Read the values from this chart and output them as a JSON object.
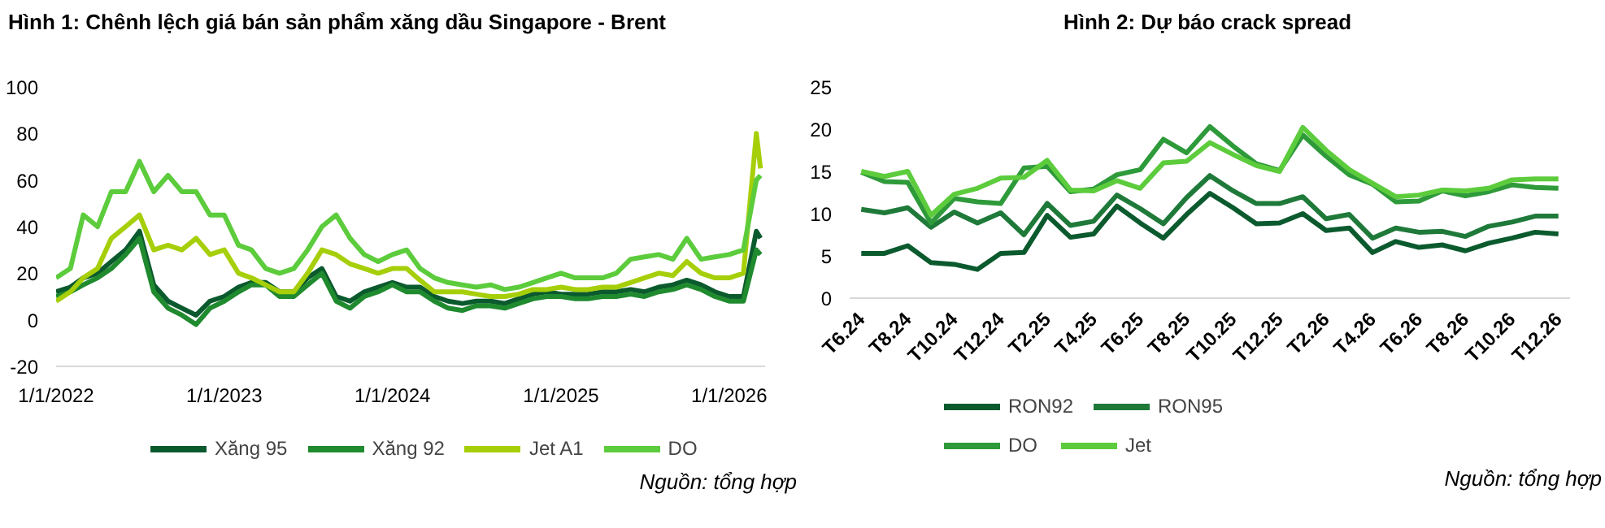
{
  "chart_data": [
    {
      "type": "line",
      "title": "Hình 1: Chênh lệch giá bán sản phẩm xăng dầu Singapore - Brent",
      "x": [
        "2022-01",
        "2022-02",
        "2022-03",
        "2022-04",
        "2022-05",
        "2022-06",
        "2022-07",
        "2022-08",
        "2022-09",
        "2022-10",
        "2022-11",
        "2022-12",
        "2023-01",
        "2023-02",
        "2023-03",
        "2023-04",
        "2023-05",
        "2023-06",
        "2023-07",
        "2023-08",
        "2023-09",
        "2023-10",
        "2023-11",
        "2023-12",
        "2024-01",
        "2024-02",
        "2024-03",
        "2024-04",
        "2024-05",
        "2024-06",
        "2024-07",
        "2024-08",
        "2024-09",
        "2024-10",
        "2024-11",
        "2024-12",
        "2025-01",
        "2025-02",
        "2025-03",
        "2025-04",
        "2025-05",
        "2025-06",
        "2025-07",
        "2025-08",
        "2025-09",
        "2025-10",
        "2025-11",
        "2025-12",
        "2026-01",
        "2026-02",
        "2026-03-01",
        "2026-03-10"
      ],
      "series": [
        {
          "name": "Xăng 95",
          "color": "#0b5a2e",
          "values": [
            12,
            14,
            18,
            20,
            25,
            30,
            38,
            15,
            8,
            5,
            2,
            8,
            10,
            14,
            16,
            16,
            12,
            12,
            18,
            22,
            10,
            8,
            12,
            14,
            16,
            14,
            14,
            10,
            8,
            7,
            8,
            8,
            7,
            9,
            11,
            12,
            11,
            11,
            11,
            12,
            12,
            13,
            12,
            14,
            15,
            17,
            15,
            12,
            10,
            10,
            38,
            35
          ]
        },
        {
          "name": "Xăng 92",
          "color": "#1f8a2e",
          "values": [
            10,
            12,
            15,
            18,
            22,
            28,
            35,
            12,
            5,
            2,
            -2,
            5,
            8,
            12,
            15,
            15,
            10,
            10,
            15,
            20,
            8,
            5,
            10,
            12,
            15,
            12,
            12,
            8,
            5,
            4,
            6,
            6,
            5,
            7,
            9,
            10,
            10,
            9,
            9,
            10,
            10,
            11,
            10,
            12,
            13,
            15,
            13,
            10,
            8,
            8,
            30,
            28
          ]
        },
        {
          "name": "Jet A1",
          "color": "#a6cf0a",
          "values": [
            8,
            12,
            18,
            22,
            35,
            40,
            45,
            30,
            32,
            30,
            35,
            28,
            30,
            20,
            18,
            15,
            12,
            12,
            20,
            30,
            28,
            24,
            22,
            20,
            22,
            22,
            17,
            12,
            12,
            12,
            11,
            10,
            10,
            11,
            13,
            13,
            14,
            13,
            13,
            14,
            14,
            16,
            18,
            20,
            19,
            25,
            20,
            18,
            18,
            20,
            80,
            65
          ]
        },
        {
          "name": "DO",
          "color": "#5ccc3c",
          "values": [
            18,
            22,
            45,
            40,
            55,
            55,
            68,
            55,
            62,
            55,
            55,
            45,
            45,
            32,
            30,
            22,
            20,
            22,
            30,
            40,
            45,
            35,
            28,
            25,
            28,
            30,
            22,
            18,
            16,
            15,
            14,
            15,
            13,
            14,
            16,
            18,
            20,
            18,
            18,
            18,
            20,
            26,
            27,
            28,
            26,
            35,
            26,
            27,
            28,
            30,
            60,
            62
          ]
        }
      ],
      "xlim": [
        "2022-01-01",
        "2026-03-20"
      ],
      "xticks": [
        {
          "value": "2022-01-01",
          "label": "1/1/2022"
        },
        {
          "value": "2023-01-01",
          "label": "1/1/2023"
        },
        {
          "value": "2024-01-01",
          "label": "1/1/2024"
        },
        {
          "value": "2025-01-01",
          "label": "1/1/2025"
        },
        {
          "value": "2026-01-01",
          "label": "1/1/2026"
        }
      ],
      "ylim": [
        -20,
        100
      ],
      "yticks": [
        -20,
        0,
        20,
        40,
        60,
        80,
        100
      ],
      "legend": "bottom",
      "grid": false,
      "annotations": [
        "Nguồn: tổng hợp"
      ]
    },
    {
      "type": "line",
      "title": "Hình 2: Dự báo crack spread",
      "categories": [
        "T6.24",
        null,
        "T8.24",
        null,
        "T10.24",
        null,
        "T12.24",
        null,
        "T2.25",
        null,
        "T4.25",
        null,
        "T6.25",
        null,
        "T8.25",
        null,
        "T10.25",
        null,
        "T12.25",
        null,
        "T2.26",
        null,
        "T4.26",
        null,
        "T6.26",
        null,
        "T8.26",
        null,
        "T10.26",
        null,
        "T12.26"
      ],
      "series": [
        {
          "name": "RON92",
          "color": "#0b5a2e",
          "values": [
            5.3,
            5.3,
            6.2,
            4.2,
            4.0,
            3.4,
            5.3,
            5.4,
            9.8,
            7.2,
            7.6,
            10.9,
            8.9,
            7.1,
            9.9,
            12.4,
            10.7,
            8.8,
            8.9,
            10.0,
            8.0,
            8.3,
            5.4,
            6.7,
            6.0,
            6.3,
            5.6,
            6.5,
            7.1,
            7.8,
            7.6
          ]
        },
        {
          "name": "RON95",
          "color": "#1f7a3a",
          "values": [
            10.5,
            10.1,
            10.7,
            8.4,
            10.2,
            8.9,
            10.1,
            7.5,
            11.2,
            8.6,
            9.1,
            12.2,
            10.6,
            8.8,
            11.9,
            14.5,
            12.7,
            11.2,
            11.2,
            12.0,
            9.4,
            9.9,
            7.1,
            8.3,
            7.8,
            7.9,
            7.3,
            8.5,
            9.0,
            9.7,
            9.7
          ]
        },
        {
          "name": "DO",
          "color": "#2e9a3a",
          "values": [
            14.9,
            13.8,
            13.7,
            8.9,
            11.8,
            11.4,
            11.2,
            15.4,
            15.6,
            12.6,
            12.9,
            14.6,
            15.2,
            18.8,
            17.2,
            20.3,
            18.0,
            15.9,
            15.1,
            19.3,
            16.8,
            14.6,
            13.5,
            11.4,
            11.5,
            12.7,
            12.1,
            12.6,
            13.4,
            13.1,
            13.0
          ]
        },
        {
          "name": "Jet",
          "color": "#5ccc3c",
          "values": [
            15.0,
            14.4,
            15.0,
            9.8,
            12.3,
            13.0,
            14.2,
            14.3,
            16.3,
            12.8,
            12.7,
            13.9,
            13.0,
            16.0,
            16.2,
            18.4,
            17.0,
            15.7,
            15.0,
            20.2,
            17.5,
            15.2,
            13.6,
            12.0,
            12.2,
            12.8,
            12.7,
            13.0,
            14.0,
            14.1,
            14.1
          ]
        }
      ],
      "ylim": [
        0,
        25
      ],
      "yticks": [
        0,
        5,
        10,
        15,
        20,
        25
      ],
      "legend": "bottom",
      "grid": false,
      "annotations": [
        "Nguồn: tổng hợp"
      ]
    }
  ]
}
